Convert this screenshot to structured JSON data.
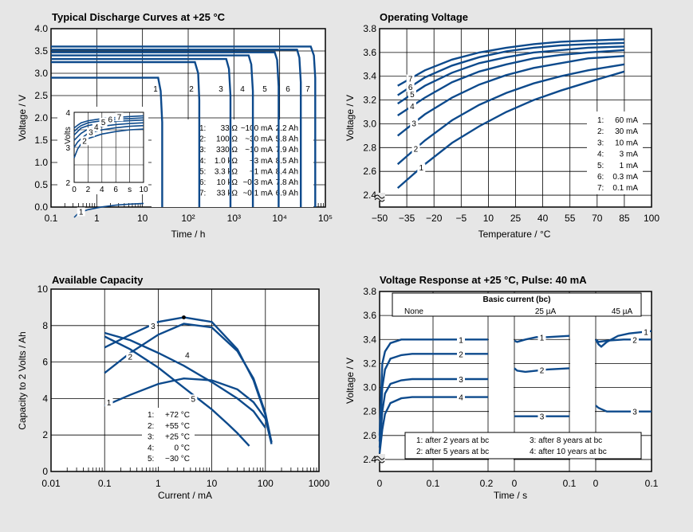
{
  "colors": {
    "background": "#e6e6e6",
    "plot": "#ffffff",
    "grid": "#000000",
    "curve": "#0d4a8c"
  },
  "chart_data": [
    {
      "type": "line",
      "title": "Typical Discharge Curves at +25 °C",
      "xlabel": "Time / h",
      "ylabel": "Voltage / V",
      "xscale": "log",
      "xlim": [
        0.1,
        100000
      ],
      "ylim": [
        0,
        4.0
      ],
      "yticks": [
        "0.0",
        "0.5",
        "1.0",
        "1.5",
        "2.0",
        "2.5",
        "3.0",
        "3.5",
        "4.0"
      ],
      "xticks": [
        "0.1",
        "1",
        "10",
        "10²",
        "10³",
        "10⁴",
        "10⁵"
      ],
      "curve_labels": [
        "1",
        "2",
        "3",
        "4",
        "5",
        "6",
        "7"
      ],
      "series": [
        {
          "name": "1",
          "x": [
            0.1,
            22,
            25,
            27,
            27
          ],
          "y": [
            2.9,
            2.9,
            2.6,
            1.9,
            0
          ]
        },
        {
          "name": "2",
          "x": [
            0.1,
            140,
            165,
            175,
            175
          ],
          "y": [
            3.25,
            3.25,
            3.0,
            2.4,
            0
          ]
        },
        {
          "name": "3",
          "x": [
            0.1,
            680,
            780,
            840,
            840
          ],
          "y": [
            3.32,
            3.32,
            3.1,
            2.5,
            0
          ]
        },
        {
          "name": "4",
          "x": [
            0.1,
            2100,
            2400,
            2600,
            2600
          ],
          "y": [
            3.4,
            3.4,
            3.2,
            2.6,
            0
          ]
        },
        {
          "name": "5",
          "x": [
            0.1,
            7800,
            8800,
            9500,
            9500
          ],
          "y": [
            3.47,
            3.47,
            3.3,
            2.7,
            0
          ]
        },
        {
          "name": "6",
          "x": [
            0.1,
            24000,
            27000,
            29000,
            29000
          ],
          "y": [
            3.53,
            3.53,
            3.35,
            2.8,
            0
          ]
        },
        {
          "name": "7",
          "x": [
            0.1,
            48000,
            56000,
            60000,
            60000
          ],
          "y": [
            3.6,
            3.6,
            3.4,
            2.9,
            0
          ]
        }
      ],
      "legend": [
        [
          "1:",
          "33 Ω",
          "~100 mA",
          "2.2 Ah"
        ],
        [
          "2:",
          "100 Ω",
          "~30 mA",
          "5.8 Ah"
        ],
        [
          "3:",
          "330 Ω",
          "~10 mA",
          "7.9 Ah"
        ],
        [
          "4:",
          "1.0 kΩ",
          "~3 mA",
          "8.5 Ah"
        ],
        [
          "5:",
          "3.3 kΩ",
          "~1 mA",
          "8.4 Ah"
        ],
        [
          "6:",
          "10 kΩ",
          "~0.3 mA",
          "7.8 Ah"
        ],
        [
          "7:",
          "33 kΩ",
          "~0.1 mA",
          "6.9 Ah"
        ]
      ],
      "inset": {
        "ylabel": "Volts",
        "xlabel": "s",
        "xlim": [
          0,
          10
        ],
        "ylim": [
          2,
          4
        ],
        "xticks": [
          "0",
          "2",
          "4",
          "6",
          "s",
          "10"
        ],
        "yticks": [
          "2",
          "3",
          "4"
        ],
        "series": [
          {
            "name": "1",
            "x": [
              0,
              0.5,
              1,
              2,
              4,
              6,
              8,
              10
            ],
            "y": [
              1.0,
              1.1,
              1.15,
              1.22,
              1.3,
              1.35,
              1.38,
              1.4
            ]
          },
          {
            "name": "2",
            "x": [
              0,
              0.5,
              1,
              2,
              4,
              6,
              8,
              10
            ],
            "y": [
              2.7,
              2.95,
              3.1,
              3.25,
              3.38,
              3.45,
              3.5,
              3.52
            ]
          },
          {
            "name": "3",
            "x": [
              0,
              0.5,
              1,
              2,
              4,
              6,
              8,
              10
            ],
            "y": [
              3.0,
              3.15,
              3.25,
              3.4,
              3.5,
              3.56,
              3.6,
              3.62
            ]
          },
          {
            "name": "4",
            "x": [
              0,
              0.5,
              1,
              2,
              4,
              6,
              8,
              10
            ],
            "y": [
              3.2,
              3.3,
              3.4,
              3.52,
              3.6,
              3.65,
              3.68,
              3.7
            ]
          },
          {
            "name": "5",
            "x": [
              0,
              0.5,
              1,
              2,
              4,
              6,
              8,
              10
            ],
            "y": [
              3.35,
              3.45,
              3.55,
              3.62,
              3.7,
              3.74,
              3.76,
              3.78
            ]
          },
          {
            "name": "6",
            "x": [
              0,
              0.5,
              1,
              2,
              4,
              6,
              8,
              10
            ],
            "y": [
              3.45,
              3.55,
              3.62,
              3.7,
              3.76,
              3.8,
              3.82,
              3.84
            ]
          },
          {
            "name": "7",
            "x": [
              0,
              0.5,
              1,
              2,
              4,
              6,
              8,
              10
            ],
            "y": [
              3.55,
              3.63,
              3.7,
              3.76,
              3.82,
              3.85,
              3.88,
              3.9
            ]
          }
        ]
      }
    },
    {
      "type": "line",
      "title": "Operating Voltage",
      "xlabel": "Temperature / °C",
      "ylabel": "Voltage / V",
      "xlim": [
        -50,
        100
      ],
      "ylim": [
        2.3,
        3.8
      ],
      "xticks": [
        "−50",
        "−35",
        "−20",
        "−5",
        "10",
        "25",
        "40",
        "55",
        "70",
        "85",
        "100"
      ],
      "yticks": [
        "2.4",
        "2.6",
        "2.8",
        "3.0",
        "3.2",
        "3.4",
        "3.6",
        "3.8"
      ],
      "series": [
        {
          "name": "1",
          "x": [
            -40,
            -25,
            -10,
            5,
            20,
            35,
            50,
            65,
            85
          ],
          "y": [
            2.46,
            2.66,
            2.84,
            2.98,
            3.1,
            3.2,
            3.28,
            3.35,
            3.44
          ]
        },
        {
          "name": "2",
          "x": [
            -40,
            -25,
            -10,
            5,
            20,
            35,
            50,
            65,
            85
          ],
          "y": [
            2.66,
            2.86,
            3.03,
            3.16,
            3.26,
            3.34,
            3.4,
            3.45,
            3.5
          ]
        },
        {
          "name": "3",
          "x": [
            -40,
            -25,
            -10,
            5,
            20,
            35,
            50,
            65,
            85
          ],
          "y": [
            2.9,
            3.08,
            3.22,
            3.33,
            3.41,
            3.47,
            3.51,
            3.55,
            3.57
          ]
        },
        {
          "name": "4",
          "x": [
            -40,
            -25,
            -10,
            5,
            20,
            35,
            50,
            65,
            85
          ],
          "y": [
            3.07,
            3.22,
            3.35,
            3.44,
            3.5,
            3.55,
            3.58,
            3.6,
            3.62
          ]
        },
        {
          "name": "5",
          "x": [
            -40,
            -25,
            -10,
            5,
            20,
            35,
            50,
            65,
            85
          ],
          "y": [
            3.17,
            3.32,
            3.43,
            3.51,
            3.56,
            3.6,
            3.62,
            3.64,
            3.65
          ]
        },
        {
          "name": "6",
          "x": [
            -40,
            -25,
            -10,
            5,
            20,
            35,
            50,
            65,
            85
          ],
          "y": [
            3.24,
            3.39,
            3.49,
            3.56,
            3.61,
            3.64,
            3.66,
            3.67,
            3.68
          ]
        },
        {
          "name": "7",
          "x": [
            -40,
            -25,
            -10,
            5,
            20,
            35,
            50,
            65,
            85
          ],
          "y": [
            3.32,
            3.45,
            3.54,
            3.6,
            3.64,
            3.67,
            3.69,
            3.7,
            3.71
          ]
        }
      ],
      "legend": [
        [
          "1:",
          "60 mA"
        ],
        [
          "2:",
          "30 mA"
        ],
        [
          "3:",
          "10 mA"
        ],
        [
          "4:",
          "3 mA"
        ],
        [
          "5:",
          "1 mA"
        ],
        [
          "6:",
          "0.3 mA"
        ],
        [
          "7:",
          "0.1 mA"
        ]
      ]
    },
    {
      "type": "line",
      "title": "Available Capacity",
      "xlabel": "Current / mA",
      "ylabel": "Capacity to 2 Volts / Ah",
      "xscale": "log",
      "xlim": [
        0.01,
        1000
      ],
      "ylim": [
        0,
        10
      ],
      "xticks": [
        "0.01",
        "0.1",
        "1",
        "10",
        "100",
        "1000"
      ],
      "yticks": [
        "0",
        "2",
        "4",
        "6",
        "8",
        "10"
      ],
      "series": [
        {
          "name": "1",
          "x": [
            0.1,
            0.3,
            1,
            3,
            10,
            30,
            60,
            100,
            130
          ],
          "y": [
            3.6,
            4.2,
            4.8,
            5.1,
            5.0,
            4.5,
            3.8,
            2.9,
            1.5
          ]
        },
        {
          "name": "2",
          "x": [
            0.1,
            0.3,
            1,
            3,
            10,
            30,
            60,
            100,
            130
          ],
          "y": [
            5.4,
            6.5,
            7.5,
            8.1,
            7.9,
            6.6,
            5.1,
            3.2,
            1.6
          ]
        },
        {
          "name": "3",
          "x": [
            0.1,
            0.3,
            1,
            3,
            10,
            30,
            60,
            100,
            130
          ],
          "y": [
            6.8,
            7.5,
            8.2,
            8.45,
            8.2,
            6.7,
            5.0,
            3.1,
            1.6
          ]
        },
        {
          "name": "4",
          "x": [
            0.1,
            0.3,
            1,
            3,
            10,
            30,
            60,
            100
          ],
          "y": [
            7.6,
            7.2,
            6.5,
            5.8,
            4.9,
            4.0,
            3.3,
            2.4
          ]
        },
        {
          "name": "5",
          "x": [
            0.1,
            0.3,
            1,
            3,
            10,
            20,
            30,
            50
          ],
          "y": [
            7.4,
            6.7,
            5.7,
            4.6,
            3.4,
            2.6,
            2.1,
            1.4
          ]
        }
      ],
      "marker": {
        "x": 3,
        "y": 8.45
      },
      "legend": [
        [
          "1:",
          "+72 °C"
        ],
        [
          "2:",
          "+55 °C"
        ],
        [
          "3:",
          "+25 °C"
        ],
        [
          "4:",
          "0 °C"
        ],
        [
          "5:",
          "−30 °C"
        ]
      ]
    },
    {
      "type": "line",
      "title": "Voltage Response at +25 °C, Pulse: 40 mA",
      "xlabel": "Time / s",
      "ylabel": "Voltage / V",
      "ylim": [
        2.3,
        3.8
      ],
      "yticks": [
        "2.4",
        "2.6",
        "2.8",
        "3.0",
        "3.2",
        "3.4",
        "3.6",
        "3.8"
      ],
      "xticks": [
        "0",
        "0.1",
        "0.2",
        "0",
        "0.1",
        "0",
        "0.1"
      ],
      "header": "Basic current (bc)",
      "panels": [
        {
          "label": "None",
          "xlim": [
            0,
            0.2
          ],
          "series": [
            {
              "name": "1",
              "x": [
                0,
                0.005,
                0.01,
                0.02,
                0.04,
                0.06,
                0.1,
                0.2
              ],
              "y": [
                2.6,
                3.2,
                3.3,
                3.37,
                3.4,
                3.4,
                3.4,
                3.4
              ]
            },
            {
              "name": "2",
              "x": [
                0,
                0.005,
                0.01,
                0.02,
                0.04,
                0.06,
                0.1,
                0.2
              ],
              "y": [
                2.55,
                3.0,
                3.15,
                3.24,
                3.27,
                3.28,
                3.28,
                3.28
              ]
            },
            {
              "name": "3",
              "x": [
                0,
                0.005,
                0.01,
                0.02,
                0.04,
                0.06,
                0.1,
                0.2
              ],
              "y": [
                2.5,
                2.8,
                2.95,
                3.03,
                3.06,
                3.07,
                3.07,
                3.07
              ]
            },
            {
              "name": "4",
              "x": [
                0,
                0.005,
                0.01,
                0.02,
                0.04,
                0.06,
                0.1,
                0.2
              ],
              "y": [
                2.45,
                2.65,
                2.78,
                2.87,
                2.91,
                2.92,
                2.92,
                2.92
              ]
            }
          ]
        },
        {
          "label": "25 µA",
          "xlim": [
            0,
            0.1
          ],
          "series": [
            {
              "name": "1",
              "x": [
                0,
                0.005,
                0.02,
                0.04,
                0.06,
                0.1
              ],
              "y": [
                3.39,
                3.38,
                3.4,
                3.42,
                3.42,
                3.43
              ]
            },
            {
              "name": "2",
              "x": [
                0,
                0.005,
                0.02,
                0.04,
                0.06,
                0.1
              ],
              "y": [
                3.16,
                3.14,
                3.13,
                3.14,
                3.15,
                3.16
              ]
            },
            {
              "name": "3",
              "x": [
                0,
                0.1
              ],
              "y": [
                2.76,
                2.76
              ]
            }
          ]
        },
        {
          "label": "45 µA",
          "xlim": [
            0,
            0.1
          ],
          "series": [
            {
              "name": "1",
              "x": [
                0,
                0.005,
                0.01,
                0.02,
                0.04,
                0.06,
                0.1
              ],
              "y": [
                3.4,
                3.36,
                3.34,
                3.38,
                3.43,
                3.45,
                3.47
              ]
            },
            {
              "name": "2",
              "x": [
                0,
                0.005,
                0.02,
                0.05,
                0.1
              ],
              "y": [
                3.4,
                3.38,
                3.39,
                3.4,
                3.4
              ]
            },
            {
              "name": "3",
              "x": [
                0,
                0.005,
                0.01,
                0.02,
                0.04,
                0.1
              ],
              "y": [
                2.85,
                2.83,
                2.82,
                2.8,
                2.8,
                2.8
              ]
            }
          ]
        }
      ],
      "legend": [
        [
          "1: after 2 years at bc",
          "3: after 8 years at bc"
        ],
        [
          "2: after 5 years at bc",
          "4: after 10 years at bc"
        ]
      ]
    }
  ]
}
